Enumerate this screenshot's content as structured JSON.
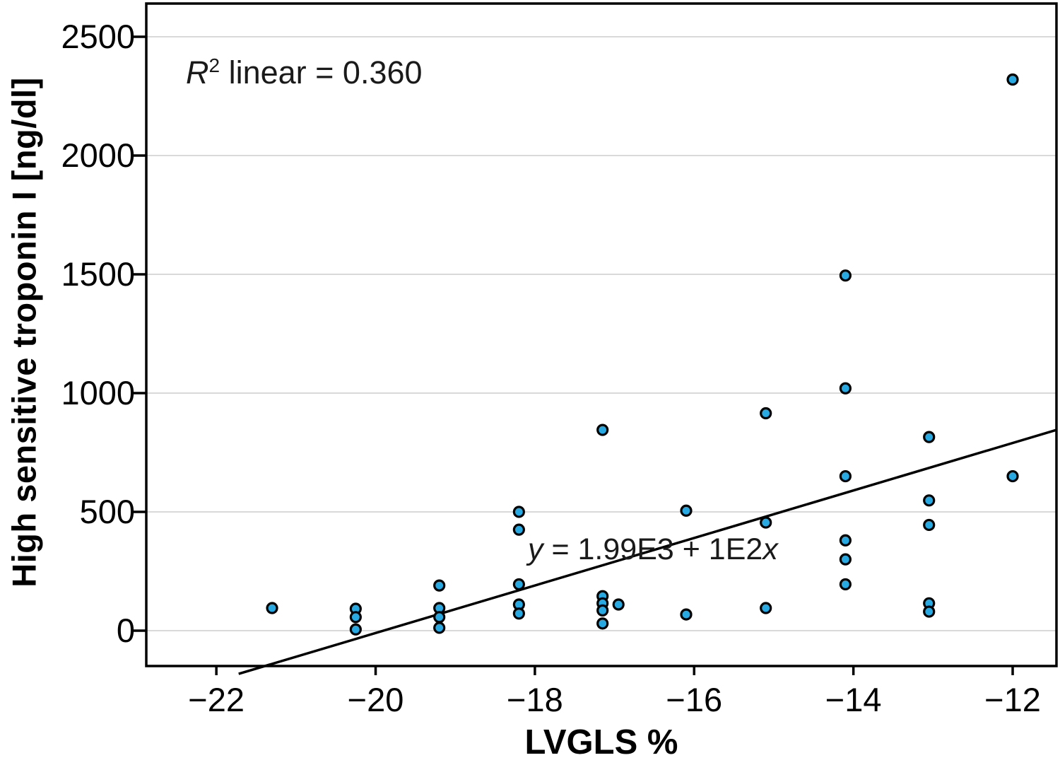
{
  "figure": {
    "annotation_r2": {
      "prefix": "R",
      "sup": "2",
      "rest": " linear = 0.360"
    },
    "equation": {
      "y_var": "y",
      "body": " = 1.99E3 + 1E2",
      "x_var": "x"
    }
  },
  "chart_data": {
    "type": "scatter",
    "title": "",
    "xlabel": "LVGLS %",
    "ylabel": "High sensitive troponin I [ng/dl]",
    "x_ticks": [
      {
        "value": -22,
        "label": "−22"
      },
      {
        "value": -20,
        "label": "−20"
      },
      {
        "value": -18,
        "label": "−18"
      },
      {
        "value": -16,
        "label": "−16"
      },
      {
        "value": -14,
        "label": "−14"
      },
      {
        "value": -12,
        "label": "−12"
      }
    ],
    "y_ticks": [
      {
        "value": 0,
        "label": "0"
      },
      {
        "value": 500,
        "label": "500"
      },
      {
        "value": 1000,
        "label": "1000"
      },
      {
        "value": 1500,
        "label": "1500"
      },
      {
        "value": 2000,
        "label": "2000"
      },
      {
        "value": 2500,
        "label": "2500"
      }
    ],
    "xlim": [
      -22.88,
      -11.45
    ],
    "ylim": [
      -149,
      2640
    ],
    "grid": "horizontal-only",
    "legend": "none",
    "r_squared": 0.36,
    "regression": {
      "label": "y = 1.99E3 + 1E2x",
      "intercept": 1990,
      "slope": 100,
      "x_draw_range": [
        -21.72,
        -11.45
      ]
    },
    "style": {
      "point_fill": "#29A9E1",
      "point_stroke": "#000000",
      "grid_color": "#D9D9D9",
      "axis_color": "#000000",
      "background": "#FFFFFF"
    },
    "points": [
      [
        -21.3,
        95
      ],
      [
        -20.25,
        92
      ],
      [
        -20.25,
        57
      ],
      [
        -20.25,
        5
      ],
      [
        -19.2,
        190
      ],
      [
        -19.2,
        95
      ],
      [
        -19.2,
        57
      ],
      [
        -19.2,
        12
      ],
      [
        -18.2,
        500
      ],
      [
        -18.2,
        425
      ],
      [
        -18.2,
        195
      ],
      [
        -18.2,
        110
      ],
      [
        -18.2,
        72
      ],
      [
        -17.15,
        845
      ],
      [
        -17.15,
        145
      ],
      [
        -17.15,
        115
      ],
      [
        -17.15,
        85
      ],
      [
        -17.15,
        30
      ],
      [
        -16.95,
        110
      ],
      [
        -16.1,
        505
      ],
      [
        -16.1,
        68
      ],
      [
        -15.1,
        915
      ],
      [
        -15.1,
        455
      ],
      [
        -15.1,
        95
      ],
      [
        -14.1,
        1495
      ],
      [
        -14.1,
        1020
      ],
      [
        -14.1,
        650
      ],
      [
        -14.1,
        380
      ],
      [
        -14.1,
        300
      ],
      [
        -14.1,
        195
      ],
      [
        -13.05,
        815
      ],
      [
        -13.05,
        548
      ],
      [
        -13.05,
        445
      ],
      [
        -13.05,
        115
      ],
      [
        -13.05,
        80
      ],
      [
        -12.0,
        2320
      ],
      [
        -12.0,
        650
      ]
    ]
  }
}
